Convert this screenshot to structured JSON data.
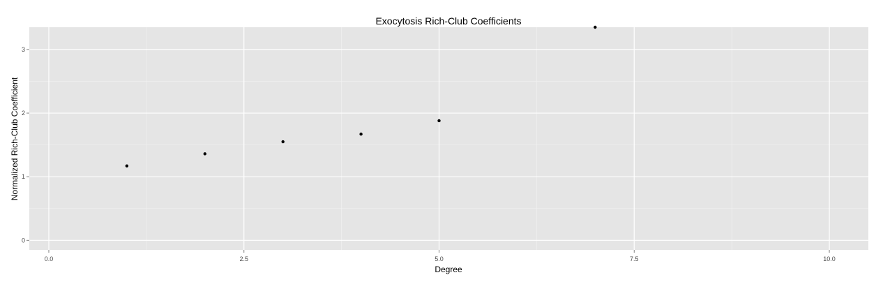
{
  "chart_data": {
    "type": "scatter",
    "title": "Exocytosis Rich-Club Coefficients",
    "xlabel": "Degree",
    "ylabel": "Normalized Rich-Club Coefficient",
    "xlim": [
      -0.25,
      10.5
    ],
    "ylim": [
      -0.15,
      3.35
    ],
    "x_ticks": [
      0.0,
      2.5,
      5.0,
      7.5,
      10.0
    ],
    "x_tick_labels": [
      "0.0",
      "2.5",
      "5.0",
      "7.5",
      "10.0"
    ],
    "y_ticks": [
      0,
      1,
      2,
      3
    ],
    "y_tick_labels": [
      "0",
      "1",
      "2",
      "3"
    ],
    "points": [
      {
        "x": 1,
        "y": 1.17
      },
      {
        "x": 2,
        "y": 1.36
      },
      {
        "x": 3,
        "y": 1.55
      },
      {
        "x": 4,
        "y": 1.67
      },
      {
        "x": 5,
        "y": 1.88
      },
      {
        "x": 7,
        "y": 3.35
      }
    ],
    "grid": true,
    "legend": "none",
    "colors": {
      "panel_background": "#e5e5e5",
      "grid_major": "#ffffff",
      "grid_minor": "#f2f2f2",
      "point": "#000000"
    }
  }
}
